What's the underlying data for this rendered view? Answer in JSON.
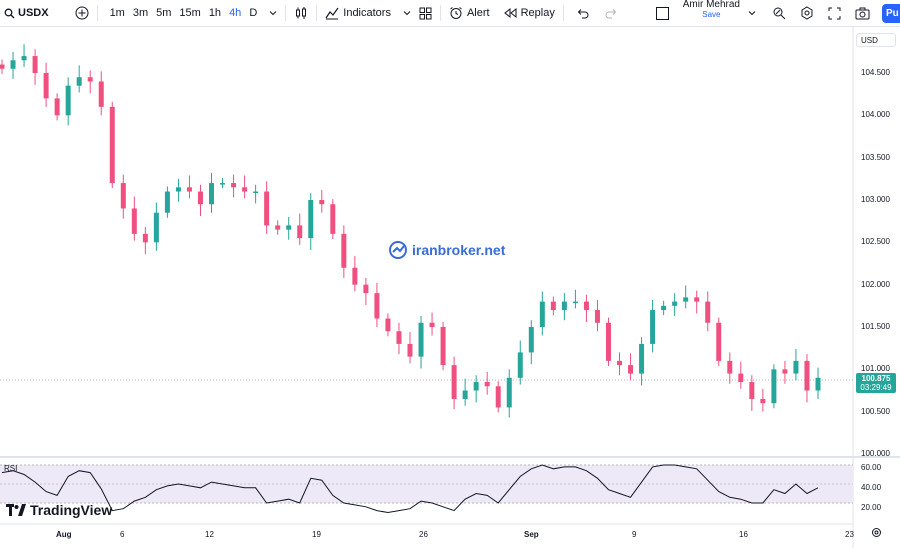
{
  "toolbar": {
    "symbol": "USDX",
    "timeframes": [
      "1m",
      "3m",
      "5m",
      "15m",
      "1h",
      "4h",
      "D"
    ],
    "active_timeframe": "4h",
    "indicators_label": "Indicators",
    "alert_label": "Alert",
    "replay_label": "Replay",
    "user_name": "Amir Mehrad",
    "save_label": "Save",
    "publish_label": "Pu"
  },
  "price_scale": {
    "currency": "USD",
    "ticks": [
      "104.500",
      "104.000",
      "103.500",
      "103.000",
      "102.500",
      "102.000",
      "101.500",
      "101.000",
      "100.500",
      "100.000"
    ],
    "current_price": "100.875",
    "countdown": "03:29:49"
  },
  "rsi": {
    "label": "RSI",
    "ticks": [
      "60.00",
      "40.00",
      "20.00"
    ]
  },
  "date_axis": [
    "Aug",
    "6",
    "12",
    "19",
    "26",
    "Sep",
    "9",
    "16",
    "23"
  ],
  "watermark": "iranbroker.net",
  "branding": "TradingView",
  "colors": {
    "up": "#26a69a",
    "down": "#ef5080",
    "accent": "#2962ff",
    "rsi_line": "#131722",
    "rsi_band": "#ede9f7"
  },
  "chart_data": {
    "type": "candlestick",
    "title": "USDX",
    "interval": "4h",
    "y_range": [
      100.0,
      104.8
    ],
    "close_series": [
      104.55,
      104.65,
      104.7,
      104.5,
      104.2,
      104.0,
      104.35,
      104.45,
      104.4,
      104.1,
      103.2,
      102.9,
      102.6,
      102.5,
      102.85,
      103.1,
      103.15,
      103.1,
      102.95,
      103.2,
      103.2,
      103.15,
      103.1,
      103.1,
      102.7,
      102.65,
      102.7,
      102.55,
      103.0,
      102.95,
      102.6,
      102.2,
      102.0,
      101.9,
      101.6,
      101.45,
      101.3,
      101.15,
      101.55,
      101.5,
      101.05,
      100.65,
      100.75,
      100.85,
      100.8,
      100.55,
      100.9,
      101.2,
      101.5,
      101.8,
      101.7,
      101.8,
      101.8,
      101.7,
      101.55,
      101.1,
      101.05,
      100.95,
      101.3,
      101.7,
      101.75,
      101.8,
      101.85,
      101.8,
      101.55,
      101.1,
      100.95,
      100.85,
      100.65,
      100.6,
      101.0,
      100.95,
      101.1,
      100.75,
      100.9
    ],
    "rsi_series": [
      62,
      64,
      60,
      52,
      42,
      38,
      58,
      64,
      62,
      45,
      22,
      24,
      32,
      36,
      44,
      48,
      50,
      48,
      46,
      52,
      50,
      48,
      46,
      46,
      30,
      32,
      34,
      30,
      56,
      54,
      38,
      30,
      28,
      26,
      22,
      20,
      22,
      24,
      32,
      30,
      26,
      22,
      34,
      40,
      38,
      30,
      44,
      58,
      66,
      70,
      66,
      68,
      68,
      64,
      56,
      44,
      40,
      36,
      52,
      68,
      70,
      70,
      68,
      66,
      54,
      42,
      36,
      34,
      30,
      30,
      44,
      40,
      50,
      40,
      46
    ]
  }
}
